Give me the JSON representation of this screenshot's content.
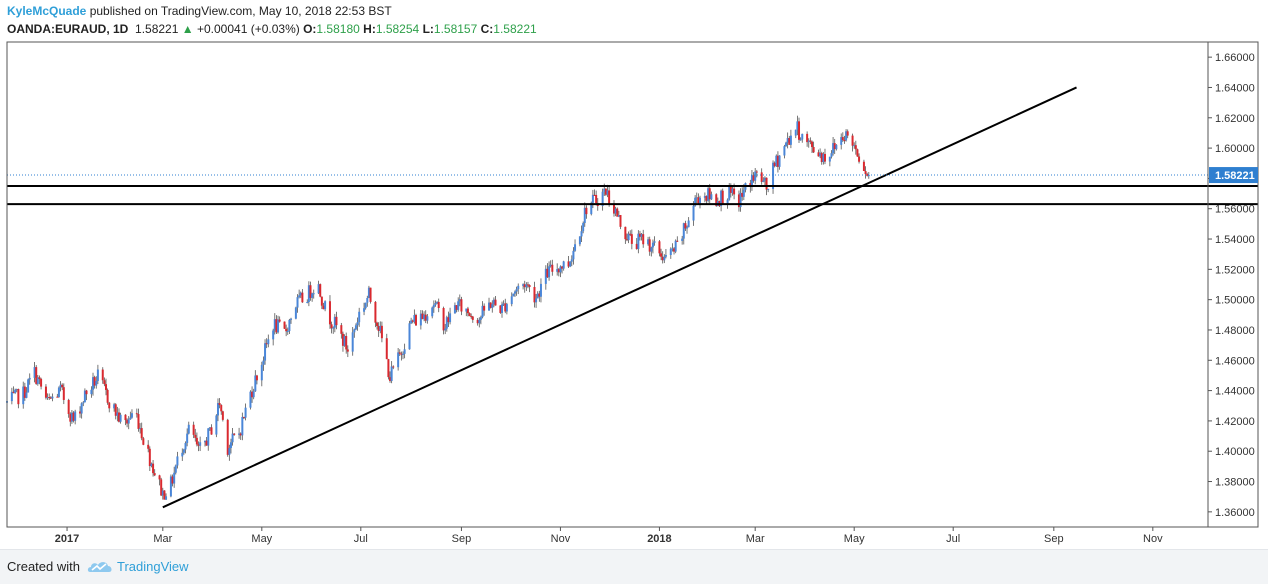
{
  "header": {
    "author": "KyleMcQuade",
    "published_text": " published on TradingView.com, May 10, 2018 22:53 BST",
    "symbol": "OANDA:EURAUD, 1D",
    "last": "1.58221",
    "change": "+0.00041 (+0.03%)",
    "open_label": "O:",
    "open": "1.58180",
    "high_label": "H:",
    "high": "1.58254",
    "low_label": "L:",
    "low": "1.58157",
    "close_label": "C:",
    "close": "1.58221",
    "up_arrow_icon": "triangle-up-icon"
  },
  "footer": {
    "created_with": "Created with",
    "brand": "TradingView",
    "logo_icon": "tradingview-cloud-icon"
  },
  "colors": {
    "up_candle": "#4a86d8",
    "down_candle": "#d9292f",
    "wick": "#555555",
    "price_line": "#2f7fd0",
    "price_tag": "#2f7fd0",
    "line": "#000000",
    "border": "#555555"
  },
  "chart_data": {
    "type": "candlestick",
    "symbol": "OANDA:EURAUD",
    "timeframe": "1D",
    "x_range": [
      "2016-11-25",
      "2018-12-05"
    ],
    "ylim": [
      1.35,
      1.67
    ],
    "y_ticks": [
      "1.66000",
      "1.64000",
      "1.62000",
      "1.60000",
      "1.58000",
      "1.56000",
      "1.54000",
      "1.52000",
      "1.50000",
      "1.48000",
      "1.46000",
      "1.44000",
      "1.42000",
      "1.40000",
      "1.38000",
      "1.36000"
    ],
    "x_ticks": [
      {
        "label": "2017",
        "date": "2017-01-01",
        "bold": true
      },
      {
        "label": "Mar",
        "date": "2017-03-01",
        "bold": false
      },
      {
        "label": "May",
        "date": "2017-05-01",
        "bold": false
      },
      {
        "label": "Jul",
        "date": "2017-07-01",
        "bold": false
      },
      {
        "label": "Sep",
        "date": "2017-09-01",
        "bold": false
      },
      {
        "label": "Nov",
        "date": "2017-11-01",
        "bold": false
      },
      {
        "label": "2018",
        "date": "2018-01-01",
        "bold": true
      },
      {
        "label": "Mar",
        "date": "2018-03-01",
        "bold": false
      },
      {
        "label": "May",
        "date": "2018-05-01",
        "bold": false
      },
      {
        "label": "Jul",
        "date": "2018-07-01",
        "bold": false
      },
      {
        "label": "Sep",
        "date": "2018-09-01",
        "bold": false
      },
      {
        "label": "Nov",
        "date": "2018-11-01",
        "bold": false
      }
    ],
    "price_path": [
      [
        "2016-11-25",
        1.432
      ],
      [
        "2016-12-05",
        1.438
      ],
      [
        "2016-12-12",
        1.452
      ],
      [
        "2016-12-20",
        1.432
      ],
      [
        "2016-12-28",
        1.44
      ],
      [
        "2017-01-05",
        1.42
      ],
      [
        "2017-01-12",
        1.437
      ],
      [
        "2017-01-20",
        1.449
      ],
      [
        "2017-01-28",
        1.431
      ],
      [
        "2017-02-05",
        1.417
      ],
      [
        "2017-02-12",
        1.427
      ],
      [
        "2017-02-18",
        1.405
      ],
      [
        "2017-02-25",
        1.383
      ],
      [
        "2017-03-01",
        1.372
      ],
      [
        "2017-03-06",
        1.378
      ],
      [
        "2017-03-12",
        1.401
      ],
      [
        "2017-03-18",
        1.416
      ],
      [
        "2017-03-23",
        1.399
      ],
      [
        "2017-03-30",
        1.412
      ],
      [
        "2017-04-05",
        1.432
      ],
      [
        "2017-04-10",
        1.403
      ],
      [
        "2017-04-17",
        1.412
      ],
      [
        "2017-04-24",
        1.438
      ],
      [
        "2017-05-01",
        1.459
      ],
      [
        "2017-05-08",
        1.484
      ],
      [
        "2017-05-15",
        1.478
      ],
      [
        "2017-05-22",
        1.497
      ],
      [
        "2017-05-29",
        1.503
      ],
      [
        "2017-06-04",
        1.512
      ],
      [
        "2017-06-10",
        1.491
      ],
      [
        "2017-06-16",
        1.482
      ],
      [
        "2017-06-23",
        1.467
      ],
      [
        "2017-06-30",
        1.491
      ],
      [
        "2017-07-06",
        1.503
      ],
      [
        "2017-07-12",
        1.483
      ],
      [
        "2017-07-19",
        1.449
      ],
      [
        "2017-07-25",
        1.463
      ],
      [
        "2017-08-01",
        1.485
      ],
      [
        "2017-08-08",
        1.489
      ],
      [
        "2017-08-15",
        1.498
      ],
      [
        "2017-08-22",
        1.483
      ],
      [
        "2017-08-29",
        1.497
      ],
      [
        "2017-09-05",
        1.492
      ],
      [
        "2017-09-12",
        1.488
      ],
      [
        "2017-09-19",
        1.498
      ],
      [
        "2017-09-26",
        1.494
      ],
      [
        "2017-10-03",
        1.505
      ],
      [
        "2017-10-10",
        1.511
      ],
      [
        "2017-10-17",
        1.502
      ],
      [
        "2017-10-24",
        1.518
      ],
      [
        "2017-10-31",
        1.522
      ],
      [
        "2017-11-06",
        1.524
      ],
      [
        "2017-11-12",
        1.543
      ],
      [
        "2017-11-17",
        1.561
      ],
      [
        "2017-11-23",
        1.566
      ],
      [
        "2017-11-29",
        1.572
      ],
      [
        "2017-12-05",
        1.558
      ],
      [
        "2017-12-10",
        1.545
      ],
      [
        "2017-12-16",
        1.537
      ],
      [
        "2017-12-22",
        1.54
      ],
      [
        "2017-12-29",
        1.534
      ],
      [
        "2018-01-05",
        1.527
      ],
      [
        "2018-01-12",
        1.535
      ],
      [
        "2018-01-18",
        1.55
      ],
      [
        "2018-01-24",
        1.568
      ],
      [
        "2018-01-30",
        1.569
      ],
      [
        "2018-02-05",
        1.566
      ],
      [
        "2018-02-12",
        1.57
      ],
      [
        "2018-02-19",
        1.565
      ],
      [
        "2018-02-26",
        1.579
      ],
      [
        "2018-03-03",
        1.583
      ],
      [
        "2018-03-08",
        1.573
      ],
      [
        "2018-03-14",
        1.591
      ],
      [
        "2018-03-20",
        1.603
      ],
      [
        "2018-03-26",
        1.614
      ],
      [
        "2018-04-01",
        1.604
      ],
      [
        "2018-04-07",
        1.599
      ],
      [
        "2018-04-13",
        1.594
      ],
      [
        "2018-04-19",
        1.601
      ],
      [
        "2018-04-25",
        1.61
      ],
      [
        "2018-05-01",
        1.602
      ],
      [
        "2018-05-06",
        1.591
      ],
      [
        "2018-05-10",
        1.582
      ]
    ],
    "last_price": 1.58221,
    "last_price_label": "1.58221",
    "horizontal_lines": [
      1.575,
      1.563
    ],
    "trendline": {
      "start": [
        "2017-03-01",
        1.363
      ],
      "end": [
        "2018-09-15",
        1.64
      ]
    }
  }
}
